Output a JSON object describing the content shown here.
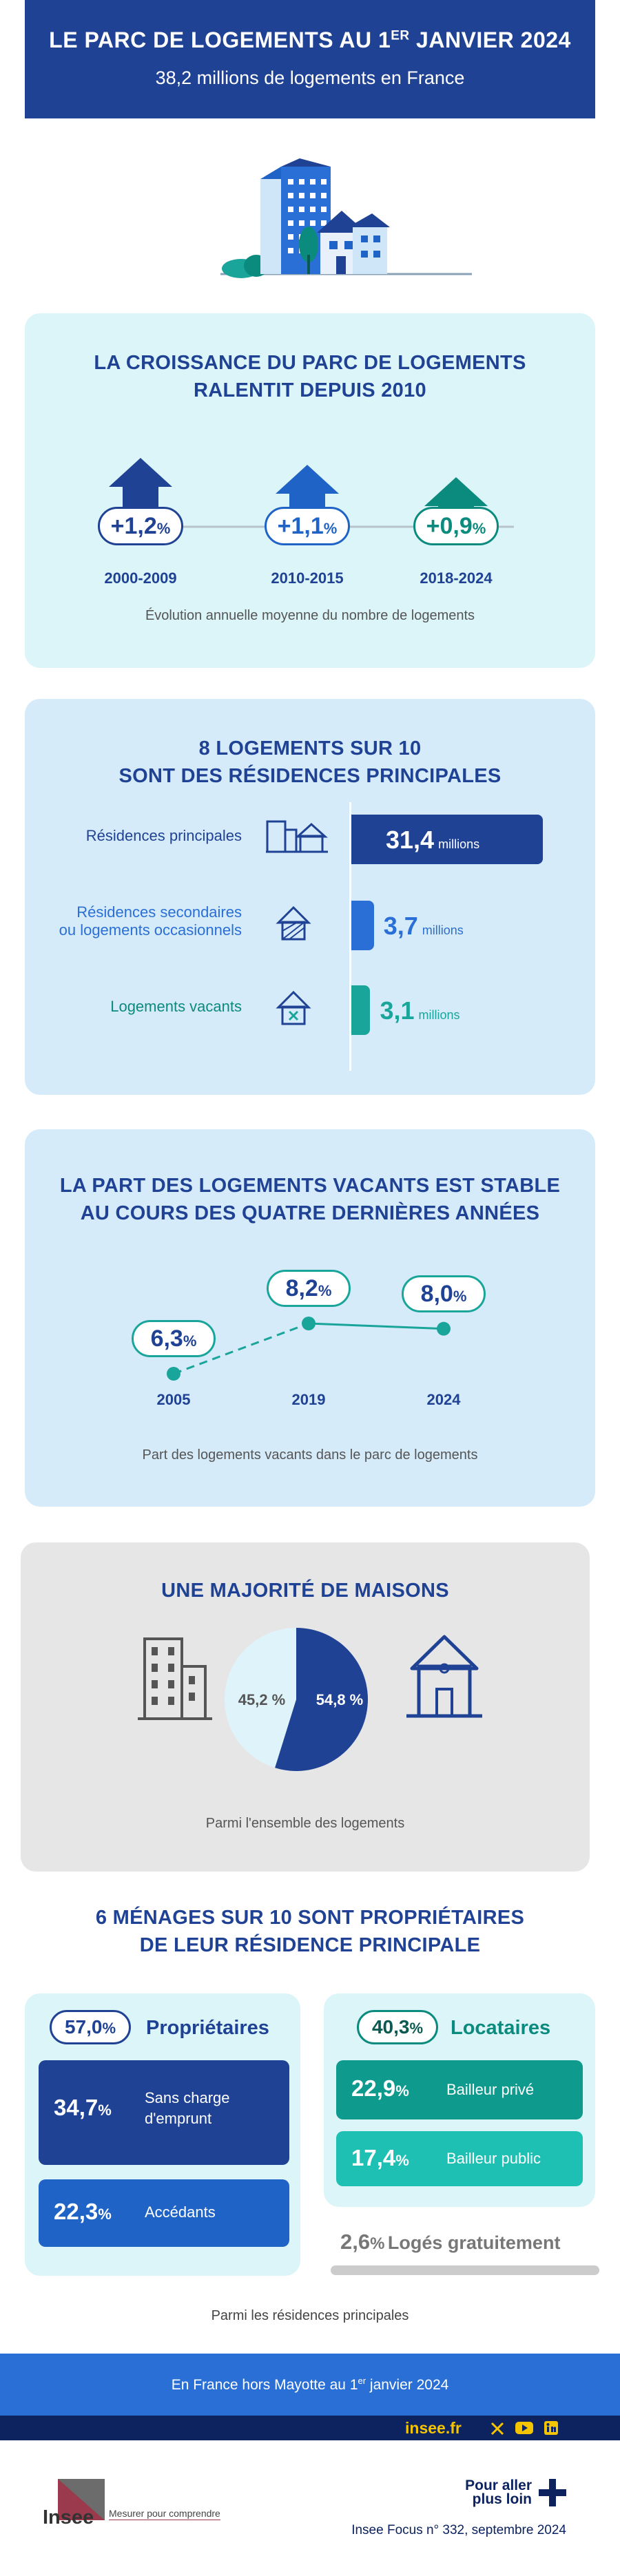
{
  "header": {
    "title_pre": "LE PARC DE LOGEMENTS AU 1",
    "title_sup": "ER",
    "title_post": " JANVIER 2024",
    "subtitle": "38,2 millions de logements en France"
  },
  "growth": {
    "title_l1": "LA CROISSANCE DU PARC DE LOGEMENTS",
    "title_l2": "RALENTIT DEPUIS 2010",
    "items": [
      {
        "value": "+1,2",
        "unit": "%",
        "period": "2000-2009",
        "color": "#1f4294"
      },
      {
        "value": "+1,1",
        "unit": "%",
        "period": "2010-2015",
        "color": "#1f63c6"
      },
      {
        "value": "+0,9",
        "unit": "%",
        "period": "2018-2024",
        "color": "#0b8a7e"
      }
    ],
    "caption": "Évolution annuelle moyenne du nombre de logements"
  },
  "residences": {
    "title_l1": "8 LOGEMENTS SUR 10",
    "title_l2": "SONT DES RÉSIDENCES PRINCIPALES",
    "rows": [
      {
        "label_l1": "Résidences principales",
        "label_l2": "",
        "value": "31,4",
        "unit": "millions",
        "amount": 31.4,
        "color": "#1f4294",
        "icon": "buildings-house-icon"
      },
      {
        "label_l1": "Résidences secondaires",
        "label_l2": "ou logements occasionnels",
        "value": "3,7",
        "unit": "millions",
        "amount": 3.7,
        "color": "#2a6fd6",
        "icon": "holiday-house-icon"
      },
      {
        "label_l1": "Logements vacants",
        "label_l2": "",
        "value": "3,1",
        "unit": "millions",
        "amount": 3.1,
        "color": "#1aa59a",
        "icon": "vacant-house-icon"
      }
    ]
  },
  "vacant": {
    "title_l1": "LA PART DES LOGEMENTS VACANTS EST STABLE",
    "title_l2": "AU COURS DES QUATRE DERNIÈRES ANNÉES",
    "points": [
      {
        "year": "2005",
        "value": "6,3",
        "unit": "%",
        "amount": 6.3
      },
      {
        "year": "2019",
        "value": "8,2",
        "unit": "%",
        "amount": 8.2
      },
      {
        "year": "2024",
        "value": "8,0",
        "unit": "%",
        "amount": 8.0
      }
    ],
    "caption": "Part des logements vacants dans le parc de logements"
  },
  "houses": {
    "title": "UNE MAJORITÉ DE MAISONS",
    "apartments": {
      "value": "45,2 %",
      "amount": 45.2,
      "color": "#dff3fb"
    },
    "maisons": {
      "value": "54,8 %",
      "amount": 54.8,
      "color": "#1f4294"
    },
    "caption": "Parmi l'ensemble des logements"
  },
  "owners": {
    "title_l1": "6 MÉNAGES SUR 10 SONT PROPRIÉTAIRES",
    "title_l2": "DE LEUR RÉSIDENCE PRINCIPALE",
    "proprietaires": {
      "value": "57,0",
      "unit": "%",
      "label": "Propriétaires",
      "items": [
        {
          "value": "34,7",
          "unit": "%",
          "label_l1": "Sans charge",
          "label_l2": "d'emprunt"
        },
        {
          "value": "22,3",
          "unit": "%",
          "label_l1": "Accédants",
          "label_l2": ""
        }
      ]
    },
    "locataires": {
      "value": "40,3",
      "unit": "%",
      "label": "Locataires",
      "items": [
        {
          "value": "22,9",
          "unit": "%",
          "label": "Bailleur privé"
        },
        {
          "value": "17,4",
          "unit": "%",
          "label": "Bailleur public"
        }
      ]
    },
    "gratuit": {
      "value": "2,6",
      "unit": "%",
      "label": "Logés gratuitement"
    },
    "caption": "Parmi les résidences principales"
  },
  "footer": {
    "scope_pre": "En France hors Mayotte au 1",
    "scope_sup": "er",
    "scope_post": " janvier 2024",
    "site": "insee.fr",
    "more_l1": "Pour aller",
    "more_l2": "plus loin",
    "source": "Insee Focus n° 332, septembre 2024",
    "logo_text": "Insee",
    "tagline": "Mesurer pour comprendre"
  }
}
